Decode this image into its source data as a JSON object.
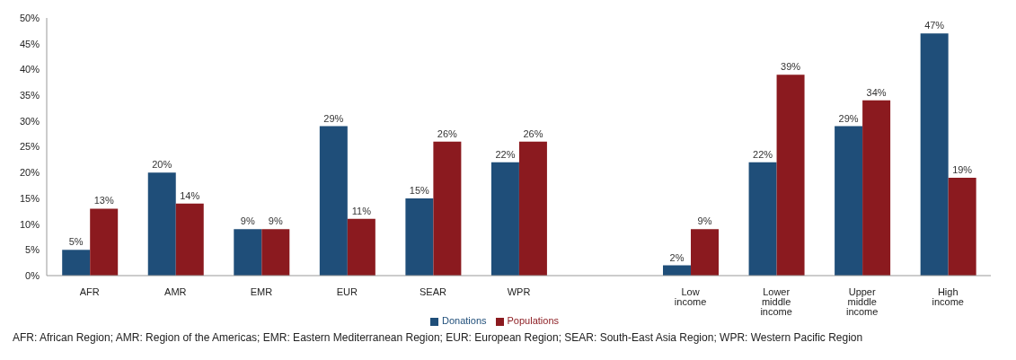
{
  "chart_data": {
    "type": "bar",
    "categories": [
      "AFR",
      "AMR",
      "EMR",
      "EUR",
      "SEAR",
      "WPR",
      null,
      "Low income",
      "Lower middle income",
      "Upper middle income",
      "High income"
    ],
    "series": [
      {
        "name": "Donations",
        "color": "#1f4e79",
        "values": [
          5,
          20,
          9,
          29,
          15,
          22,
          null,
          2,
          22,
          29,
          47
        ],
        "value_labels": [
          "5%",
          "20%",
          "9%",
          "29%",
          "15%",
          "22%",
          null,
          "2%",
          "22%",
          "29%",
          "47%"
        ]
      },
      {
        "name": "Populations",
        "color": "#8b1a1f",
        "values": [
          13,
          14,
          9,
          11,
          26,
          26,
          null,
          9,
          39,
          34,
          19
        ],
        "value_labels": [
          "13%",
          "14%",
          "9%",
          "11%",
          "26%",
          "26%",
          null,
          "9%",
          "39%",
          "34%",
          "19%"
        ]
      }
    ],
    "ylim": [
      0,
      50
    ],
    "yticks": [
      {
        "value": 0,
        "label": "0%"
      },
      {
        "value": 5,
        "label": "5%"
      },
      {
        "value": 10,
        "label": "10%"
      },
      {
        "value": 15,
        "label": "15%"
      },
      {
        "value": 20,
        "label": "20%"
      },
      {
        "value": 25,
        "label": "25%"
      },
      {
        "value": 30,
        "label": "30%"
      },
      {
        "value": 35,
        "label": "35%"
      },
      {
        "value": 40,
        "label": "40%"
      },
      {
        "value": 45,
        "label": "45%"
      },
      {
        "value": 50,
        "label": "50%"
      }
    ],
    "grid": false,
    "legend": "bottom",
    "annotations": [
      "AFR: African Region; AMR: Region of the Americas; EMR: Eastern Mediterranean Region; EUR: European Region; SEAR: South-East Asia Region; WPR: Western Pacific Region"
    ]
  }
}
